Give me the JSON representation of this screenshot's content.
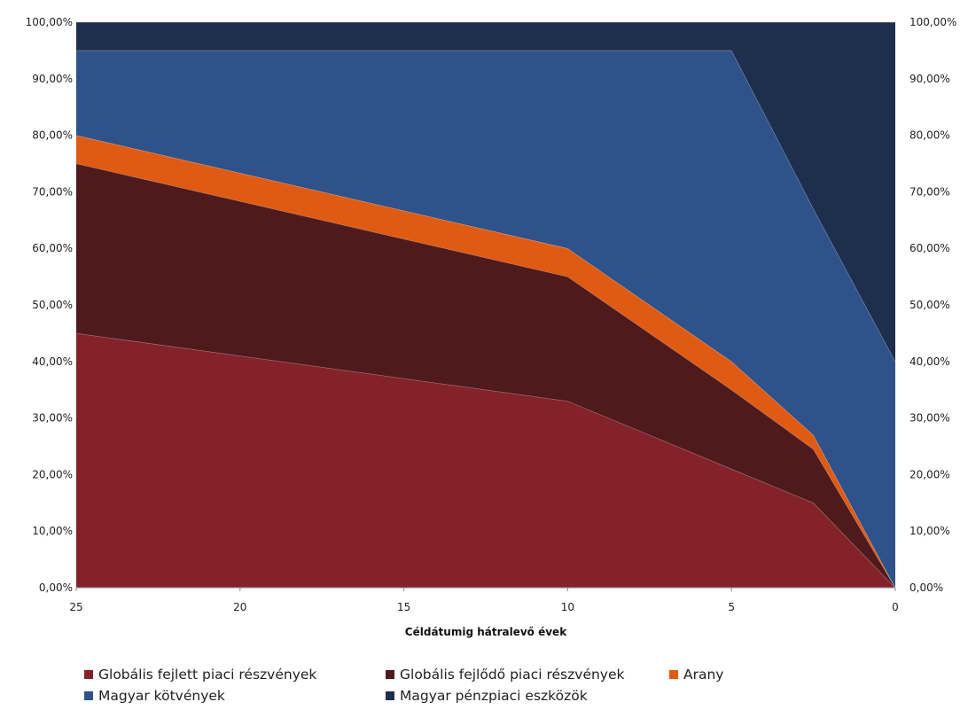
{
  "chart_data": {
    "type": "area",
    "stacked": true,
    "x": [
      25,
      10,
      5,
      2.5,
      0
    ],
    "xlabel": "Céldátumig hátralevő évek",
    "x_ticks": [
      "25",
      "20",
      "15",
      "10",
      "5",
      "0"
    ],
    "y_ticks": [
      "0,00%",
      "10,00%",
      "20,00%",
      "30,00%",
      "40,00%",
      "50,00%",
      "60,00%",
      "70,00%",
      "80,00%",
      "90,00%",
      "100,00%"
    ],
    "ylim": [
      0,
      100
    ],
    "xlim": [
      25,
      0
    ],
    "x_reversed": true,
    "legend_position": "bottom",
    "series": [
      {
        "name": "Globális fejlett piaci részvények",
        "color": "#84222A",
        "values": [
          45,
          33,
          21,
          15,
          0
        ]
      },
      {
        "name": "Globális fejlődő piaci részvények",
        "color": "#4F1A1C",
        "values": [
          30,
          22,
          14,
          9.5,
          0
        ]
      },
      {
        "name": "Arany",
        "color": "#DF5B14",
        "values": [
          5,
          5,
          5,
          2.5,
          0
        ]
      },
      {
        "name": "Magyar kötvények",
        "color": "#2E5289",
        "values": [
          15,
          35,
          55,
          40,
          40
        ]
      },
      {
        "name": "Magyar pénzpiaci eszközök",
        "color": "#1E2F4E",
        "values": [
          5,
          5,
          5,
          33,
          60
        ]
      }
    ]
  }
}
